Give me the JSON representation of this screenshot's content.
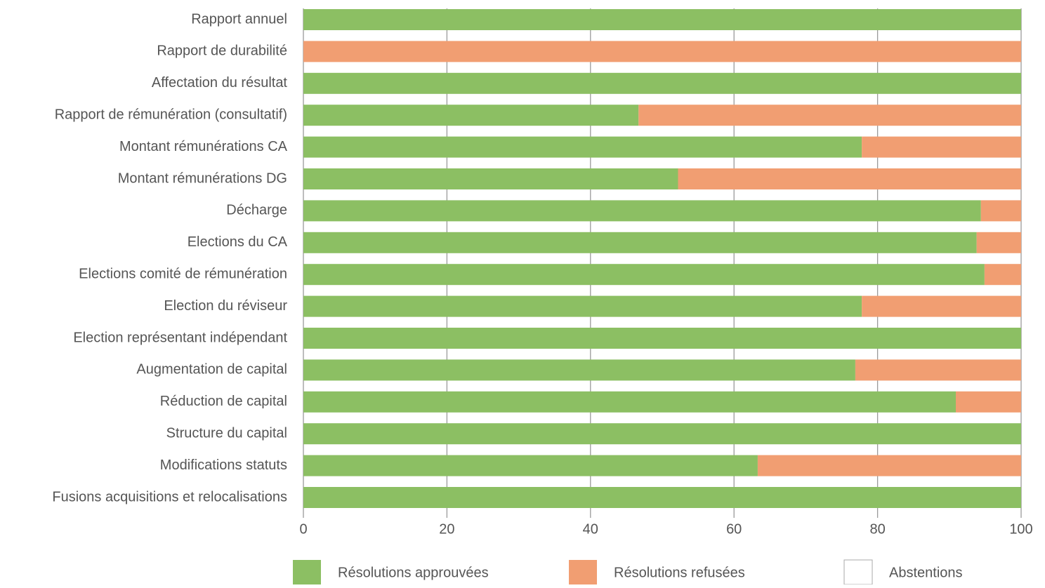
{
  "chart_data": {
    "type": "bar",
    "orientation": "horizontal",
    "stacked": true,
    "categories": [
      "Rapport annuel",
      "Rapport de durabilité",
      "Affectation du résultat",
      "Rapport de rémunération (consultatif)",
      "Montant rémunérations CA",
      "Montant rémunérations DG",
      "Décharge",
      "Elections du CA",
      "Elections comité de rémunération",
      "Election du réviseur",
      "Election représentant indépendant",
      "Augmentation de capital",
      "Réduction de capital",
      "Structure du capital",
      "Modifications statuts",
      "Fusions acquisitions et relocalisations"
    ],
    "series": [
      {
        "name": "Résolutions approuvées",
        "color": "#8cbf63",
        "values": [
          100,
          0,
          100,
          46.7,
          77.8,
          52.2,
          94.4,
          93.8,
          94.9,
          77.8,
          100,
          76.9,
          90.9,
          100,
          63.3,
          100
        ]
      },
      {
        "name": "Résolutions refusées",
        "color": "#f19e72",
        "values": [
          0,
          100,
          0,
          53.3,
          22.2,
          47.8,
          5.6,
          6.2,
          5.1,
          22.2,
          0,
          23.1,
          9.1,
          0,
          36.7,
          0
        ]
      },
      {
        "name": "Abstentions",
        "color": "#ffffff",
        "values": [
          0,
          0,
          0,
          0,
          0,
          0,
          0,
          0,
          0,
          0,
          0,
          0,
          0,
          0,
          0,
          0
        ]
      }
    ],
    "xlim": [
      0,
      100
    ],
    "x_ticks": [
      "0",
      "20",
      "40",
      "60",
      "80",
      "100"
    ],
    "grid": true,
    "legend_position": "bottom",
    "title": "",
    "xlabel": "",
    "ylabel": ""
  }
}
